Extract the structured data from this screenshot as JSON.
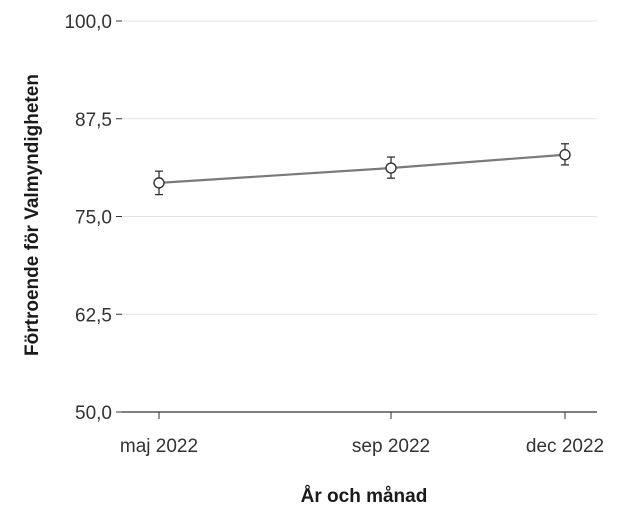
{
  "chart_data": {
    "type": "line",
    "title": "",
    "xlabel": "År och månad",
    "ylabel": "Förtroende för Valmyndigheten",
    "x": [
      "2022-05",
      "2022-09",
      "2022-12"
    ],
    "x_tick_labels": [
      "maj 2022",
      "sep 2022",
      "dec 2022"
    ],
    "series": [
      {
        "values": [
          79.3,
          81.2,
          82.9
        ],
        "error_low": [
          77.8,
          79.9,
          81.6
        ],
        "error_high": [
          80.8,
          82.6,
          84.3
        ]
      }
    ],
    "ylim": [
      50.0,
      100.0
    ],
    "y_ticks": [
      50.0,
      62.5,
      75.0,
      87.5,
      100.0
    ],
    "y_tick_labels": [
      "50,0",
      "62,5",
      "75,0",
      "87,5",
      "100,0"
    ],
    "grid": "horizontal",
    "legend": "none",
    "colors": {
      "line": "#7a7a7a",
      "marker": "#333333",
      "grid": "#e3e3e3",
      "axis": "#333333"
    }
  }
}
